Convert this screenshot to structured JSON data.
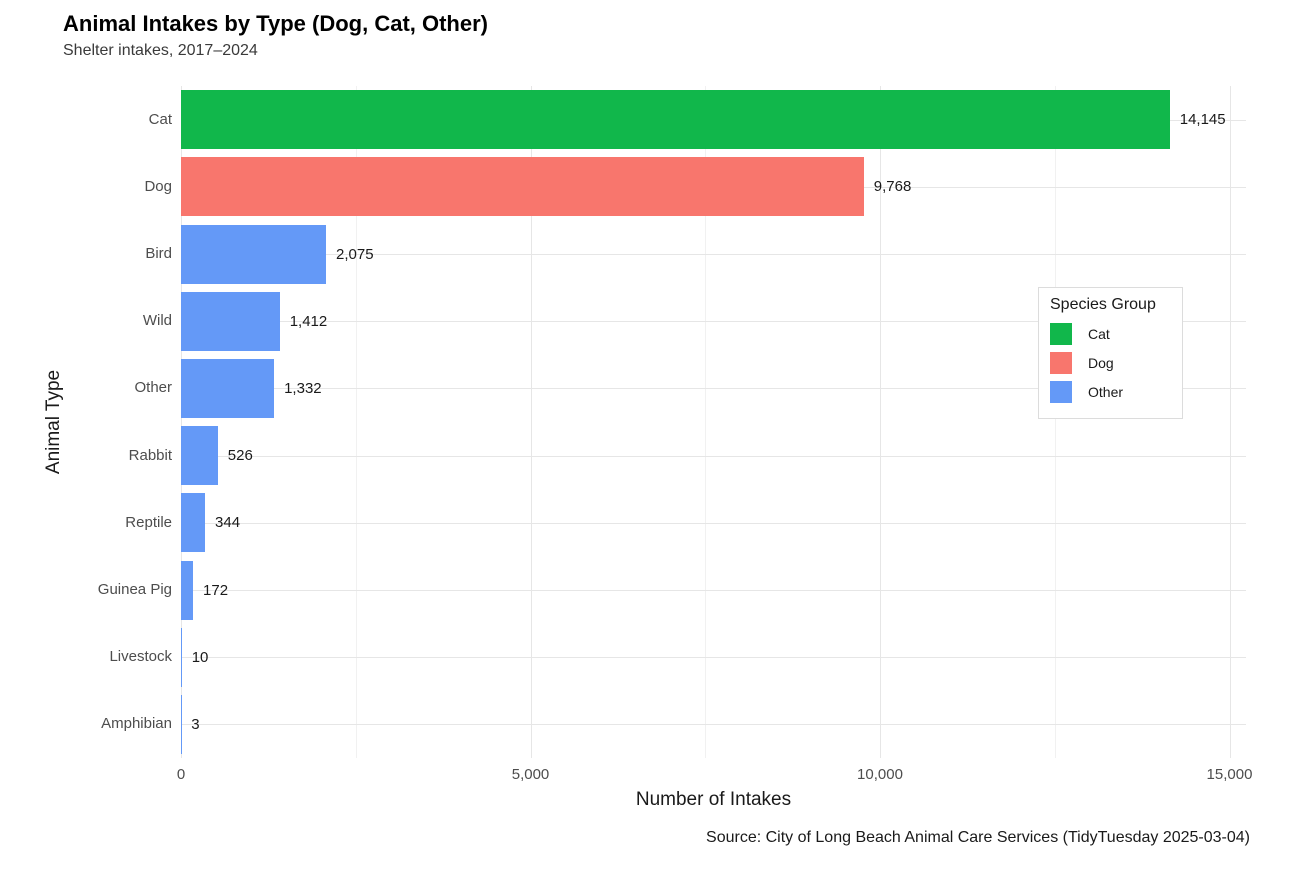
{
  "header": {
    "title": "Animal Intakes by Type (Dog, Cat, Other)",
    "subtitle": "Shelter intakes, 2017–2024"
  },
  "axes": {
    "x_title": "Number of Intakes",
    "y_title": "Animal Type",
    "x_tick_labels": [
      "0",
      "5,000",
      "10,000",
      "15,000"
    ]
  },
  "caption": "Source: City of Long Beach Animal Care Services (TidyTuesday 2025-03-04)",
  "legend": {
    "title": "Species Group",
    "items": [
      {
        "label": "Cat",
        "color": "#11B74B"
      },
      {
        "label": "Dog",
        "color": "#F8766D"
      },
      {
        "label": "Other",
        "color": "#6499F7"
      }
    ]
  },
  "chart_data": {
    "type": "bar",
    "orientation": "horizontal",
    "title": "Animal Intakes by Type (Dog, Cat, Other)",
    "subtitle": "Shelter intakes, 2017–2024",
    "xlabel": "Number of Intakes",
    "ylabel": "Animal Type",
    "caption": "Source: City of Long Beach Animal Care Services (TidyTuesday 2025-03-04)",
    "categories": [
      "Cat",
      "Dog",
      "Bird",
      "Wild",
      "Other",
      "Rabbit",
      "Reptile",
      "Guinea Pig",
      "Livestock",
      "Amphibian"
    ],
    "values": [
      14145,
      9768,
      2075,
      1412,
      1332,
      526,
      344,
      172,
      10,
      3
    ],
    "value_labels": [
      "14,145",
      "9,768",
      "2,075",
      "1,412",
      "1,332",
      "526",
      "344",
      "172",
      "10",
      "3"
    ],
    "groups": [
      "Cat",
      "Dog",
      "Other",
      "Other",
      "Other",
      "Other",
      "Other",
      "Other",
      "Other",
      "Other"
    ],
    "group_colors": {
      "Cat": "#11B74B",
      "Dog": "#F8766D",
      "Other": "#6499F7"
    },
    "x_ticks": [
      0,
      5000,
      10000,
      15000
    ],
    "x_minor_ticks": [
      2500,
      7500,
      12500
    ],
    "xlim": [
      0,
      15230
    ],
    "grid": true,
    "legend_position": "inside right",
    "legend_title": "Species Group",
    "legend_entries": [
      "Cat",
      "Dog",
      "Other"
    ]
  }
}
